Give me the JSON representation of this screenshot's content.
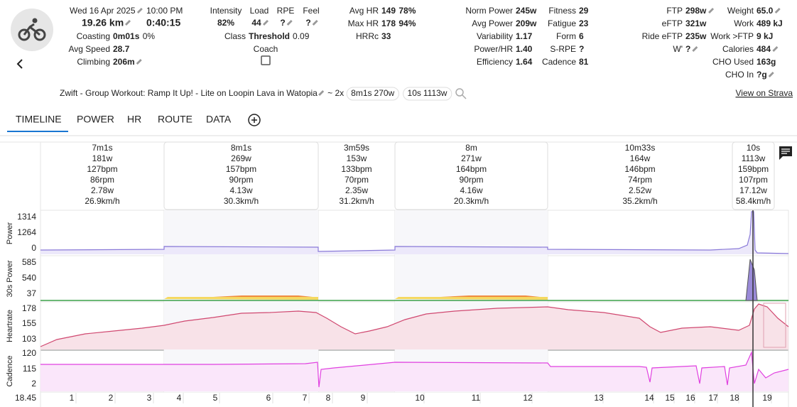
{
  "header": {
    "date": "Wed 16 Apr 2025",
    "time": "10:00 PM",
    "distance": "19.26 km",
    "duration": "0:40:15",
    "top_metrics": [
      {
        "label": "Intensity",
        "value": "82%",
        "edit": false
      },
      {
        "label": "Load",
        "value": "44",
        "edit": true
      },
      {
        "label": "RPE",
        "value": "?",
        "edit": true
      },
      {
        "label": "Feel",
        "value": "?",
        "edit": true
      }
    ],
    "coach": "Coach",
    "columns": [
      {
        "rows": [
          {
            "label": "Coasting",
            "value": "0m01s",
            "extra": "0%"
          },
          {
            "label": "Avg Speed",
            "value": "28.7"
          },
          {
            "label": "Climbing",
            "value": "206m",
            "edit": true
          }
        ]
      },
      {
        "rows": [
          {
            "label": "Class",
            "value": "Threshold",
            "extra": "0.09"
          }
        ]
      },
      {
        "rows": [
          {
            "label": "Avg HR",
            "value": "149",
            "extra": "78%"
          },
          {
            "label": "Max HR",
            "value": "178",
            "extra": "94%"
          },
          {
            "label": "HRRc",
            "value": "33"
          }
        ]
      },
      {
        "rows": [
          {
            "label": "Norm Power",
            "value": "245w"
          },
          {
            "label": "Avg Power",
            "value": "209w"
          },
          {
            "label": "Variability",
            "value": "1.17"
          },
          {
            "label": "Power/HR",
            "value": "1.40"
          },
          {
            "label": "Efficiency",
            "value": "1.64"
          }
        ]
      },
      {
        "rows": [
          {
            "label": "Fitness",
            "value": "29"
          },
          {
            "label": "Fatigue",
            "value": "23"
          },
          {
            "label": "Form",
            "value": "6"
          },
          {
            "label": "S-RPE",
            "value": "?"
          },
          {
            "label": "Cadence",
            "value": "81"
          }
        ]
      },
      {
        "rows": [
          {
            "label": "FTP",
            "value": "298w",
            "edit": true
          },
          {
            "label": "eFTP",
            "value": "321w"
          },
          {
            "label": "Ride eFTP",
            "value": "235w"
          },
          {
            "label": "W'",
            "value": "?",
            "edit": true
          }
        ]
      },
      {
        "rows": [
          {
            "label": "Weight",
            "value": "65.0",
            "edit": true
          },
          {
            "label": "Work",
            "value": "489 kJ"
          },
          {
            "label": "Work >FTP",
            "value": "9 kJ"
          },
          {
            "label": "Calories",
            "value": "484",
            "edit": true
          },
          {
            "label": "CHO Used",
            "value": "163g"
          },
          {
            "label": "CHO In",
            "value": "?g",
            "edit": true
          }
        ]
      }
    ]
  },
  "description": {
    "title": "Zwift - Group Workout: Ramp It Up! - Lite on Loopin Lava in Watopia",
    "repeat": "~ 2x",
    "chips": [
      {
        "duration": "8m1s",
        "power": "270w"
      },
      {
        "duration": "10s",
        "power": "1113w"
      }
    ],
    "strava": "View on Strava"
  },
  "tabs": [
    "TIMELINE",
    "POWER",
    "HR",
    "ROUTE",
    "DATA"
  ],
  "intervals": [
    {
      "duration": "7m1s",
      "power": "181w",
      "hr": "127bpm",
      "cadence": "86rpm",
      "wkg": "2.78w",
      "speed": "26.9km/h",
      "highlight": false
    },
    {
      "duration": "8m1s",
      "power": "269w",
      "hr": "157bpm",
      "cadence": "90rpm",
      "wkg": "4.13w",
      "speed": "30.3km/h",
      "highlight": true
    },
    {
      "duration": "3m59s",
      "power": "153w",
      "hr": "133bpm",
      "cadence": "70rpm",
      "wkg": "2.35w",
      "speed": "31.2km/h",
      "highlight": false
    },
    {
      "duration": "8m",
      "power": "271w",
      "hr": "164bpm",
      "cadence": "90rpm",
      "wkg": "4.16w",
      "speed": "20.3km/h",
      "highlight": true
    },
    {
      "duration": "10m33s",
      "power": "164w",
      "hr": "146bpm",
      "cadence": "74rpm",
      "wkg": "2.52w",
      "speed": "35.2km/h",
      "highlight": false
    },
    {
      "duration": "10s",
      "power": "1113w",
      "hr": "159bpm",
      "cadence": "107rpm",
      "wkg": "17.12w",
      "speed": "58.4km/h",
      "highlight": true
    }
  ],
  "charts": [
    {
      "name": "Power",
      "ticks": [
        "1314",
        "1264",
        "0"
      ]
    },
    {
      "name": "30s Power",
      "ticks": [
        "585",
        "540",
        "37"
      ]
    },
    {
      "name": "Heartrate",
      "ticks": [
        "178",
        "155",
        "103"
      ]
    },
    {
      "name": "Cadence",
      "ticks": [
        "120",
        "115",
        "2"
      ]
    }
  ],
  "distance_axis": {
    "start": "18.45",
    "marks": [
      "1",
      "2",
      "3",
      "4",
      "5",
      "6",
      "7",
      "8",
      "9",
      "10",
      "11",
      "12",
      "13",
      "14",
      "15",
      "16",
      "17",
      "18",
      "19"
    ]
  }
}
